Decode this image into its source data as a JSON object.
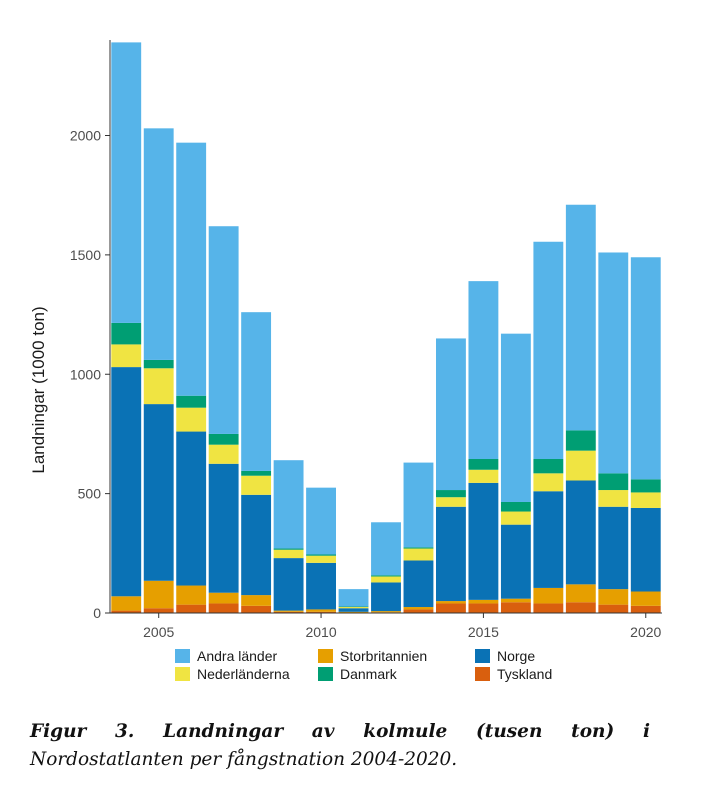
{
  "chart_data": {
    "type": "bar",
    "stacked": true,
    "ylabel": "Landningar (1000 ton)",
    "ylim": [
      0,
      2400
    ],
    "yticks": [
      0,
      500,
      1000,
      1500,
      2000
    ],
    "xticks": [
      2005,
      2010,
      2015,
      2020
    ],
    "categories": [
      2004,
      2005,
      2006,
      2007,
      2008,
      2009,
      2010,
      2011,
      2012,
      2013,
      2014,
      2015,
      2016,
      2017,
      2018,
      2019,
      2020
    ],
    "series": [
      {
        "name": "Tyskland",
        "color": "#d95f0e",
        "values": [
          10,
          20,
          35,
          40,
          30,
          5,
          5,
          2,
          3,
          15,
          40,
          40,
          45,
          40,
          45,
          35,
          30
        ]
      },
      {
        "name": "Storbritannien",
        "color": "#e69f00",
        "values": [
          60,
          115,
          80,
          45,
          45,
          5,
          10,
          3,
          5,
          10,
          10,
          15,
          15,
          65,
          75,
          65,
          60
        ]
      },
      {
        "name": "Norge",
        "color": "#0a72b5",
        "values": [
          960,
          740,
          645,
          540,
          420,
          220,
          195,
          15,
          120,
          195,
          395,
          490,
          310,
          405,
          435,
          345,
          350
        ]
      },
      {
        "name": "Nederländerna",
        "color": "#f0e442",
        "values": [
          95,
          150,
          100,
          80,
          80,
          35,
          30,
          5,
          25,
          50,
          40,
          55,
          55,
          75,
          125,
          70,
          65
        ]
      },
      {
        "name": "Danmark",
        "color": "#009e73",
        "values": [
          90,
          35,
          50,
          45,
          20,
          5,
          5,
          2,
          5,
          5,
          30,
          45,
          40,
          60,
          85,
          70,
          55
        ]
      },
      {
        "name": "Andra länder",
        "color": "#56b4e9",
        "values": [
          1175,
          970,
          1060,
          870,
          665,
          370,
          280,
          73,
          222,
          355,
          635,
          745,
          705,
          910,
          945,
          925,
          930
        ]
      }
    ],
    "legend_order": [
      "Andra länder",
      "Nederländerna",
      "Storbritannien",
      "Danmark",
      "Norge",
      "Tyskland"
    ],
    "legend_position": "bottom"
  },
  "caption": {
    "line1": "Figur 3. Landningar av kolmule (tusen ton) i",
    "line2": "Nordostatlanten per fångstnation 2004-2020."
  }
}
